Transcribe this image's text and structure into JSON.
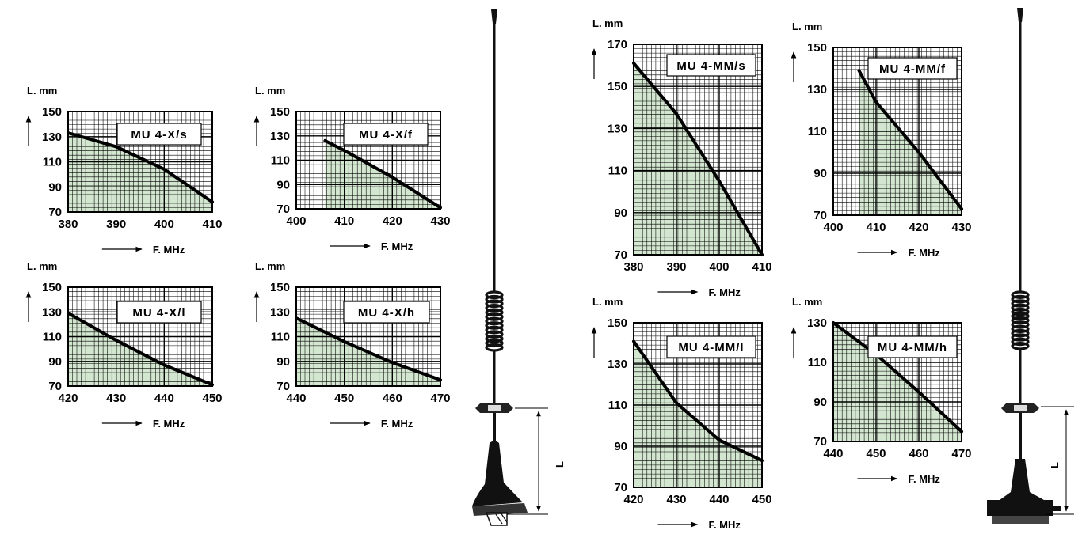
{
  "colors": {
    "fill": "#d3e6cf",
    "grid": "#000000",
    "curve": "#000000"
  },
  "chart_data": [
    {
      "type": "area",
      "group": "MU 4-X",
      "title": "MU 4-X/s",
      "xlabel": "F. MHz",
      "ylabel": "L. mm",
      "xlim": [
        380,
        410
      ],
      "ylim": [
        70,
        150
      ],
      "xticks": [
        "380",
        "390",
        "400",
        "410"
      ],
      "yticks": [
        "70",
        "90",
        "110",
        "130",
        "150"
      ],
      "points": [
        [
          380,
          133
        ],
        [
          390,
          122
        ],
        [
          400,
          104
        ],
        [
          410,
          78
        ]
      ]
    },
    {
      "type": "area",
      "group": "MU 4-X",
      "title": "MU 4-X/f",
      "xlabel": "F. MHz",
      "ylabel": "L. mm",
      "xlim": [
        400,
        430
      ],
      "ylim": [
        70,
        150
      ],
      "xticks": [
        "400",
        "410",
        "420",
        "430"
      ],
      "yticks": [
        "70",
        "90",
        "110",
        "130",
        "150"
      ],
      "points": [
        [
          406,
          126
        ],
        [
          410,
          118
        ],
        [
          420,
          96
        ],
        [
          430,
          71
        ]
      ]
    },
    {
      "type": "area",
      "group": "MU 4-X",
      "title": "MU 4-X/l",
      "xlabel": "F. MHz",
      "ylabel": "L. mm",
      "xlim": [
        420,
        450
      ],
      "ylim": [
        70,
        150
      ],
      "xticks": [
        "420",
        "430",
        "440",
        "450"
      ],
      "yticks": [
        "70",
        "90",
        "110",
        "130",
        "150"
      ],
      "points": [
        [
          420,
          129
        ],
        [
          430,
          107
        ],
        [
          440,
          87
        ],
        [
          450,
          71
        ]
      ]
    },
    {
      "type": "area",
      "group": "MU 4-X",
      "title": "MU 4-X/h",
      "xlabel": "F. MHz",
      "ylabel": "L. mm",
      "xlim": [
        440,
        470
      ],
      "ylim": [
        70,
        150
      ],
      "xticks": [
        "440",
        "450",
        "460",
        "470"
      ],
      "yticks": [
        "70",
        "90",
        "110",
        "130",
        "150"
      ],
      "points": [
        [
          440,
          125
        ],
        [
          450,
          106
        ],
        [
          460,
          89
        ],
        [
          470,
          75
        ]
      ]
    },
    {
      "type": "area",
      "group": "MU 4-MM",
      "title": "MU 4-MM/s",
      "xlabel": "F. MHz",
      "ylabel": "L. mm",
      "xlim": [
        380,
        410
      ],
      "ylim": [
        70,
        170
      ],
      "xticks": [
        "380",
        "390",
        "400",
        "410"
      ],
      "yticks": [
        "70",
        "90",
        "110",
        "130",
        "150",
        "170"
      ],
      "points": [
        [
          380,
          161
        ],
        [
          390,
          137
        ],
        [
          400,
          105
        ],
        [
          410,
          70
        ]
      ]
    },
    {
      "type": "area",
      "group": "MU 4-MM",
      "title": "MU 4-MM/f",
      "xlabel": "F. MHz",
      "ylabel": "L. mm",
      "xlim": [
        400,
        430
      ],
      "ylim": [
        70,
        150
      ],
      "xticks": [
        "400",
        "410",
        "420",
        "430"
      ],
      "yticks": [
        "70",
        "90",
        "110",
        "130",
        "150"
      ],
      "points": [
        [
          406,
          139
        ],
        [
          410,
          124
        ],
        [
          420,
          100
        ],
        [
          430,
          73
        ]
      ]
    },
    {
      "type": "area",
      "group": "MU 4-MM",
      "title": "MU 4-MM/l",
      "xlabel": "F. MHz",
      "ylabel": "L. mm",
      "xlim": [
        420,
        450
      ],
      "ylim": [
        70,
        150
      ],
      "xticks": [
        "420",
        "430",
        "440",
        "450"
      ],
      "yticks": [
        "70",
        "90",
        "110",
        "130",
        "150"
      ],
      "points": [
        [
          420,
          141
        ],
        [
          430,
          111
        ],
        [
          440,
          93
        ],
        [
          450,
          83
        ]
      ]
    },
    {
      "type": "area",
      "group": "MU 4-MM",
      "title": "MU 4-MM/h",
      "xlabel": "F. MHz",
      "ylabel": "L. mm",
      "xlim": [
        440,
        470
      ],
      "ylim": [
        70,
        130
      ],
      "xticks": [
        "440",
        "450",
        "460",
        "470"
      ],
      "yticks": [
        "70",
        "90",
        "110",
        "130"
      ],
      "points": [
        [
          440,
          130
        ],
        [
          450,
          114
        ],
        [
          460,
          95
        ],
        [
          470,
          75
        ]
      ]
    }
  ],
  "antennas": [
    {
      "name": "antenna-left",
      "dimension_label": "L"
    },
    {
      "name": "antenna-right",
      "dimension_label": "L"
    }
  ]
}
